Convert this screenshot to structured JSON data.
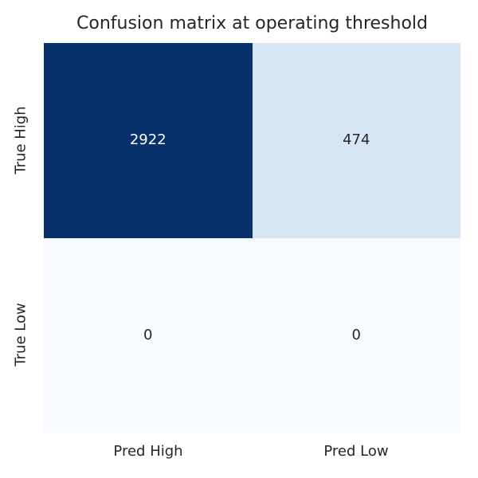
{
  "chart_data": {
    "type": "heatmap",
    "title": "Confusion matrix at operating threshold",
    "rows": [
      "True High",
      "True Low"
    ],
    "cols": [
      "Pred High",
      "Pred Low"
    ],
    "values": [
      [
        2922,
        474
      ],
      [
        0,
        0
      ]
    ],
    "vmin": 0,
    "vmax": 2922,
    "colormap": "Blues",
    "cell_colors": [
      [
        "#08306b",
        "#d7e6f5"
      ],
      [
        "#f7fbff",
        "#f7fbff"
      ]
    ],
    "text_colors": [
      [
        "#ffffff",
        "#262626"
      ],
      [
        "#262626",
        "#262626"
      ]
    ],
    "colorbar": false,
    "grid": false,
    "legend_position": "none"
  }
}
